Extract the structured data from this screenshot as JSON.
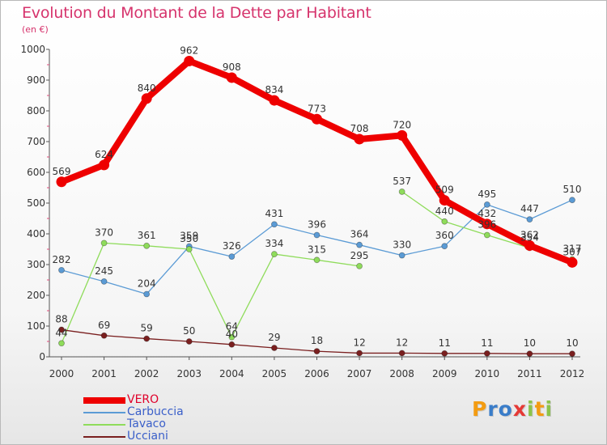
{
  "title": "Evolution du Montant de la Dette par Habitant",
  "subtitle": "(en €)",
  "logo": {
    "text": "Proxiti",
    "letters": [
      {
        "char": "P",
        "color": "#f39c12"
      },
      {
        "char": "r",
        "color": "#3a7dc9"
      },
      {
        "char": "o",
        "color": "#3a7dc9"
      },
      {
        "char": "x",
        "color": "#e53935"
      },
      {
        "char": "i",
        "color": "#8bc34a"
      },
      {
        "char": "t",
        "color": "#f39c12"
      },
      {
        "char": "i",
        "color": "#8bc34a"
      }
    ]
  },
  "chart_data": {
    "type": "line",
    "title": "Evolution du Montant de la Dette par Habitant",
    "ylabel": "(en €)",
    "xlabel": "",
    "x": [
      2000,
      2001,
      2002,
      2003,
      2004,
      2005,
      2006,
      2007,
      2008,
      2009,
      2010,
      2011,
      2012
    ],
    "ylim": [
      0,
      1000
    ],
    "yticks": [
      0,
      100,
      200,
      300,
      400,
      500,
      600,
      700,
      800,
      900,
      1000
    ],
    "grid": false,
    "legend_position": "bottom-left",
    "series": [
      {
        "name": "VERO",
        "color": "#ee0000",
        "emphasis": true,
        "values": [
          569,
          624,
          840,
          962,
          908,
          834,
          773,
          708,
          720,
          509,
          432,
          362,
          307
        ],
        "labels": [
          "569",
          "624",
          "840",
          "962",
          "908",
          "834",
          "773",
          "708",
          "720",
          "509",
          "432",
          "362",
          "307"
        ]
      },
      {
        "name": "Carbuccia",
        "color": "#5b9bd5",
        "values": [
          282,
          245,
          204,
          359,
          326,
          431,
          396,
          364,
          330,
          360,
          495,
          447,
          510
        ],
        "labels": [
          "282",
          "245",
          "204",
          "359",
          "326",
          "431",
          "396",
          "364",
          "330",
          "360",
          "495",
          "447",
          "510"
        ]
      },
      {
        "name": "Tavaco",
        "color": "#8fdc5b",
        "values": [
          44,
          370,
          361,
          350,
          64,
          334,
          315,
          295,
          537,
          440,
          396,
          354,
          317
        ],
        "labels": [
          "44",
          "370",
          "361",
          "350",
          "64",
          "334",
          "315",
          "295",
          "537",
          "440",
          "396",
          "354",
          "317"
        ],
        "segment_breaks": [
          7
        ]
      },
      {
        "name": "Ucciani",
        "color": "#7a1f1f",
        "values": [
          88,
          69,
          59,
          50,
          40,
          29,
          18,
          12,
          12,
          11,
          11,
          10,
          10
        ],
        "labels": [
          "88",
          "69",
          "59",
          "50",
          "40",
          "29",
          "18",
          "12",
          "12",
          "11",
          "11",
          "10",
          "10"
        ]
      }
    ]
  }
}
